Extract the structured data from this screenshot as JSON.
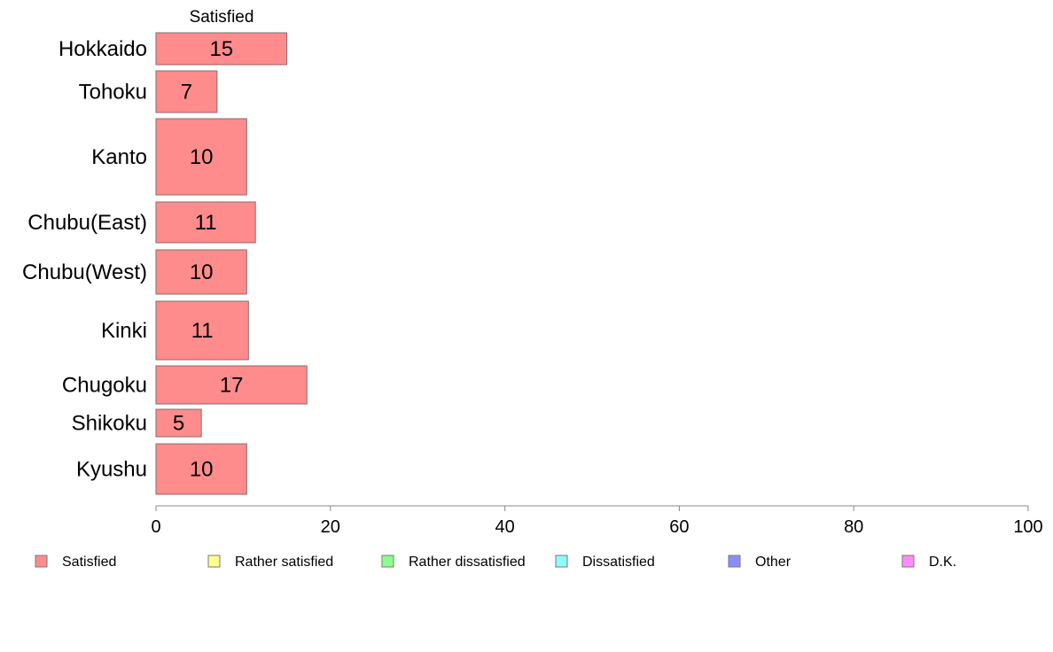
{
  "chart_data": {
    "type": "bar",
    "orientation": "horizontal",
    "stacked": true,
    "column_header": "Satisfied",
    "categories": [
      "Hokkaido",
      "Tohoku",
      "Kanto",
      "Chubu(East)",
      "Chubu(West)",
      "Kinki",
      "Chugoku",
      "Shikoku",
      "Kyushu"
    ],
    "series": [
      {
        "name": "Satisfied",
        "values": [
          15,
          7,
          10.4,
          11.4,
          10.4,
          10.6,
          17.3,
          5.2,
          10.4
        ],
        "labels": [
          "15",
          "7",
          "10",
          "11",
          "10",
          "11",
          "17",
          "5",
          "10"
        ],
        "color": "#ff8c8c"
      }
    ],
    "xlim": [
      0,
      100
    ],
    "xticks": [
      "0",
      "20",
      "40",
      "60",
      "80",
      "100"
    ],
    "grid": false,
    "legend_position": "bottom",
    "legend": [
      {
        "label": "Satisfied",
        "color": "#ff8c8c"
      },
      {
        "label": "Rather satisfied",
        "color": "#ffff8c"
      },
      {
        "label": "Rather dissatisfied",
        "color": "#8cff8c"
      },
      {
        "label": "Dissatisfied",
        "color": "#8cffff"
      },
      {
        "label": "Other",
        "color": "#8c8cff"
      },
      {
        "label": "D.K.",
        "color": "#ff8cff"
      }
    ]
  }
}
